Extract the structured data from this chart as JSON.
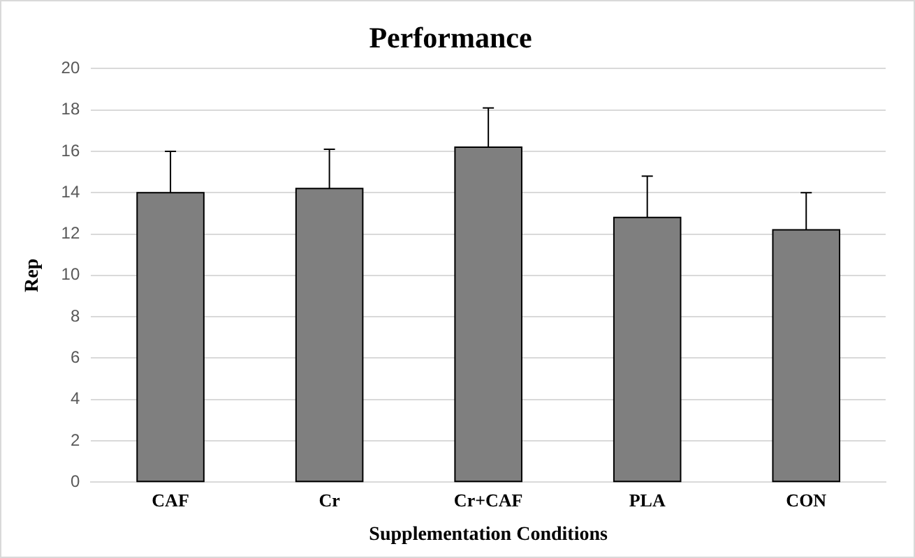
{
  "chart_data": {
    "type": "bar",
    "title": "Performance",
    "xlabel": "Supplementation Conditions",
    "ylabel": "Rep",
    "categories": [
      "CAF",
      "Cr",
      "Cr+CAF",
      "PLA",
      "CON"
    ],
    "values": [
      14,
      14.2,
      16.2,
      12.8,
      12.2
    ],
    "errors": [
      [
        14,
        16
      ],
      [
        14.2,
        16.1
      ],
      [
        16.2,
        18.1
      ],
      [
        12.8,
        14.8
      ],
      [
        12.2,
        14
      ]
    ],
    "color": "#7f7f7f",
    "ylim": [
      0,
      20
    ],
    "yticks": [
      0,
      2,
      4,
      6,
      8,
      10,
      12,
      14,
      16,
      18,
      20
    ],
    "grid": "y",
    "legend": false
  }
}
